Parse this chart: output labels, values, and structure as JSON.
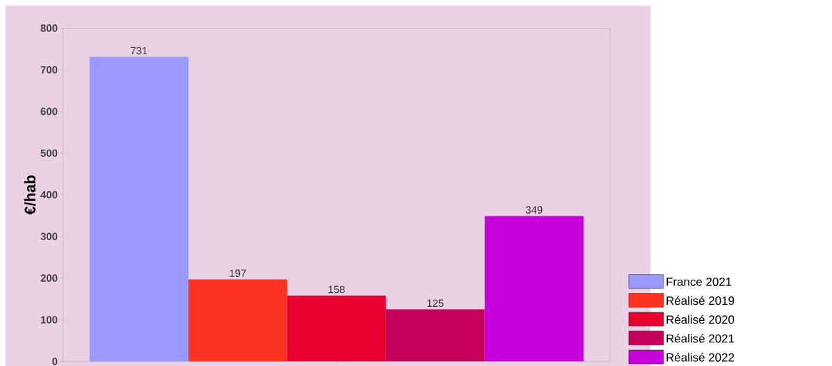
{
  "chart_data": {
    "type": "bar",
    "ylabel": "€/hab",
    "categories": [
      null
    ],
    "series": [
      {
        "name": "France 2021",
        "color": "#9999ff",
        "values": [
          731
        ]
      },
      {
        "name": "Réalisé 2019",
        "color": "#ff3322",
        "values": [
          197
        ]
      },
      {
        "name": "Réalisé 2020",
        "color": "#e8002e",
        "values": [
          158
        ]
      },
      {
        "name": "Réalisé 2021",
        "color": "#c4005a",
        "values": [
          125
        ]
      },
      {
        "name": "Réalisé 2022",
        "color": "#c800dd",
        "values": [
          349
        ]
      }
    ],
    "ylim": [
      0,
      800
    ],
    "yticks": [
      0,
      100,
      200,
      300,
      400,
      500,
      600,
      700,
      800
    ],
    "data_labels": true,
    "grid": false,
    "legend": "bottom right"
  }
}
